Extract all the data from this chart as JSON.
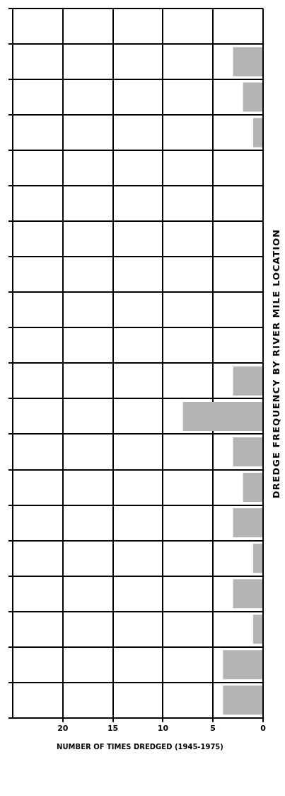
{
  "chart_data": {
    "type": "bar",
    "orientation": "horizontal",
    "title": "DREDGE FREQUENCY BY RIVER MILE LOCATION",
    "xlabel": "NUMBER OF TIMES DREDGED (1945-1975)",
    "categories": [
      null,
      null,
      null,
      null,
      null,
      null,
      null,
      null,
      null,
      null,
      null,
      null,
      null,
      null,
      null,
      null,
      null,
      null,
      null,
      null
    ],
    "values": [
      0,
      3,
      2,
      1,
      0,
      0,
      0,
      0,
      0,
      0,
      3,
      8,
      3,
      2,
      3,
      1,
      3,
      1,
      4,
      4
    ],
    "color": "#b4b4b4",
    "xlim": [
      25,
      0
    ],
    "xticks": [
      0,
      5,
      10,
      15,
      20
    ],
    "grid": true
  }
}
